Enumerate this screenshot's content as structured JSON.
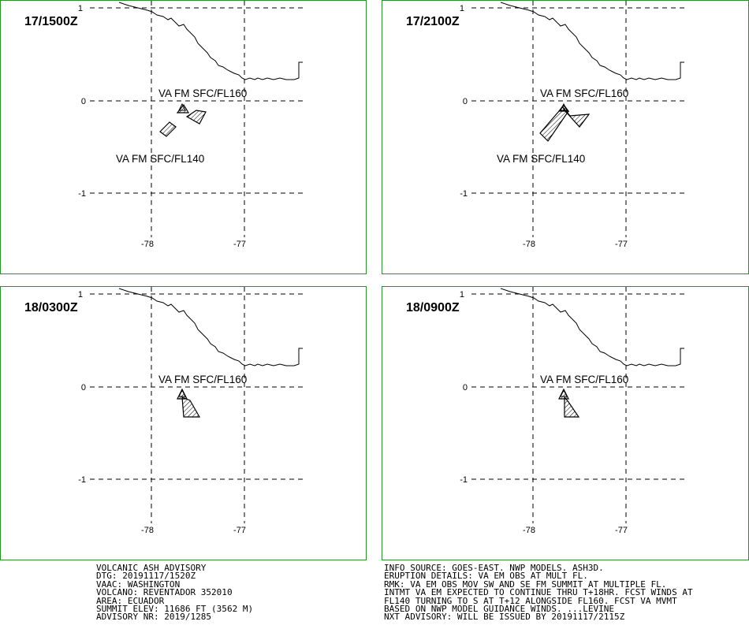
{
  "panels": [
    {
      "time": "17/1500Z",
      "label_upper": "VA FM SFC/FL160",
      "label_lower": "VA FM SFC/FL140",
      "lat_ticks": [
        "1",
        "0",
        "-1"
      ],
      "lon_ticks": [
        "-78",
        "-77"
      ]
    },
    {
      "time": "17/2100Z",
      "label_upper": "VA FM SFC/FL160",
      "label_lower": "VA FM SFC/FL140",
      "lat_ticks": [
        "1",
        "0",
        "-1"
      ],
      "lon_ticks": [
        "-78",
        "-77"
      ]
    },
    {
      "time": "18/0300Z",
      "label_upper": "VA FM SFC/FL160",
      "lat_ticks": [
        "1",
        "0",
        "-1"
      ],
      "lon_ticks": [
        "-78",
        "-77"
      ]
    },
    {
      "time": "18/0900Z",
      "label_upper": "VA FM SFC/FL160",
      "lat_ticks": [
        "1",
        "0",
        "-1"
      ],
      "lon_ticks": [
        "-78",
        "-77"
      ]
    }
  ],
  "advisory_left": [
    "VOLCANIC ASH ADVISORY",
    "DTG: 20191117/1520Z",
    "VAAC: WASHINGTON",
    "VOLCANO: REVENTADOR 352010",
    "AREA: ECUADOR",
    "SUMMIT ELEV: 11686 FT (3562 M)",
    "ADVISORY NR: 2019/1285"
  ],
  "advisory_right": [
    "INFO SOURCE: GOES-EAST. NWP MODELS. ASH3D.",
    "ERUPTION DETAILS: VA EM OBS AT MULT FL.",
    "RMK: VA EM OBS MOV SW AND SE FM SUMMIT AT MULTIPLE FL.",
    "INTMT VA EM EXPECTED TO CONTINUE THRU T+18HR. FCST WINDS AT",
    "FL140 TURNING TO S AT T+12 ALONGSIDE FL160. FCST VA MVMT",
    "BASED ON NWP MODEL GUIDANCE WINDS. ...LEVINE",
    "NXT ADVISORY: WILL BE ISSUED BY 20191117/2115Z"
  ]
}
